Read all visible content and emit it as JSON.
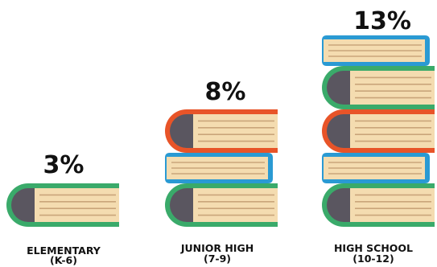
{
  "chart_data": {
    "type": "bar",
    "categories": [
      {
        "line1": "ELEMENTARY",
        "line2": "(K-6)"
      },
      {
        "line1": "JUNIOR HIGH",
        "line2": "(7-9)"
      },
      {
        "line1": "HIGH SCHOOL",
        "line2": "(10-12)"
      }
    ],
    "values": [
      3,
      8,
      13
    ],
    "value_labels": [
      "3%",
      "8%",
      "13%"
    ],
    "unit": "%",
    "stacks": [
      [
        "big-green"
      ],
      [
        "big-green",
        "flat-blue",
        "big-orange"
      ],
      [
        "big-green",
        "flat-blue",
        "big-orange",
        "big-green",
        "flat-blue"
      ]
    ],
    "colors": {
      "green": "#3aaa6a",
      "blue": "#2a9ad3",
      "orange": "#e85428",
      "pages": "#f4dcb0",
      "page_lines": "#c9a57a",
      "spine": "#5a5660",
      "text": "#111111"
    }
  }
}
